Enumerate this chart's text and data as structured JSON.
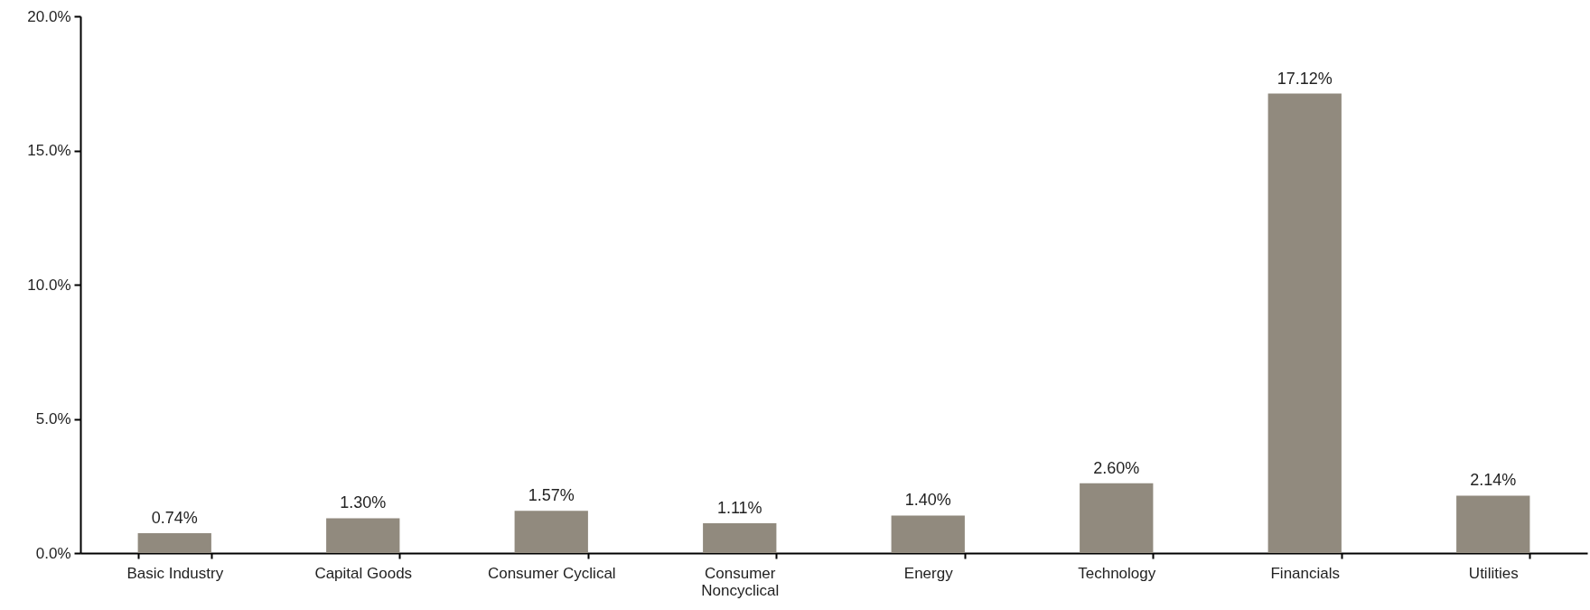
{
  "chart_data": {
    "type": "bar",
    "categories": [
      "Basic Industry",
      "Capital Goods",
      "Consumer Cyclical",
      "Consumer Noncyclical",
      "Energy",
      "Technology",
      "Financials",
      "Utilities"
    ],
    "values": [
      0.74,
      1.3,
      1.57,
      1.11,
      1.4,
      2.6,
      17.12,
      2.14
    ],
    "value_labels": [
      "0.74%",
      "1.30%",
      "1.57%",
      "1.11%",
      "1.40%",
      "2.60%",
      "17.12%",
      "2.14%"
    ],
    "color": "#918a7e",
    "ylim": [
      0,
      20
    ],
    "yticks": [
      {
        "value": 0,
        "label": "0.0%"
      },
      {
        "value": 5,
        "label": "5.0%"
      },
      {
        "value": 10,
        "label": "10.0%"
      },
      {
        "value": 15,
        "label": "15.0%"
      },
      {
        "value": 20,
        "label": "20.0%"
      }
    ],
    "grid": false
  }
}
